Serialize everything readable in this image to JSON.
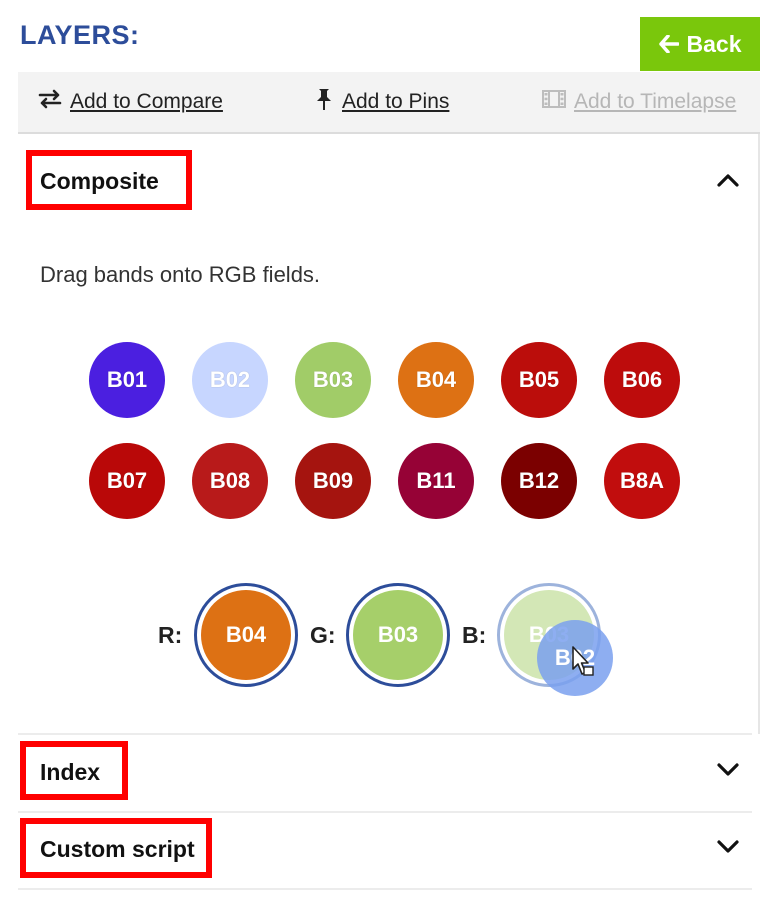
{
  "header": {
    "title": "LAYERS:",
    "back_label": "Back"
  },
  "toolbar": {
    "compare_label": "Add to Compare",
    "pins_label": "Add to Pins",
    "timelapse_label": "Add to Timelapse"
  },
  "composite": {
    "title": "Composite",
    "instruction": "Drag bands onto RGB fields.",
    "bands": [
      {
        "label": "B01",
        "color": "#4b1fe0"
      },
      {
        "label": "B02",
        "color": "#c7d6ff"
      },
      {
        "label": "B03",
        "color": "#a1cc68"
      },
      {
        "label": "B04",
        "color": "#dd7114"
      },
      {
        "label": "B05",
        "color": "#bb0d0b"
      },
      {
        "label": "B06",
        "color": "#bd0c0c"
      },
      {
        "label": "B07",
        "color": "#b90808"
      },
      {
        "label": "B08",
        "color": "#b81a1a"
      },
      {
        "label": "B09",
        "color": "#a5140f"
      },
      {
        "label": "B11",
        "color": "#960236"
      },
      {
        "label": "B12",
        "color": "#7b0000"
      },
      {
        "label": "B8A",
        "color": "#c10d0d"
      }
    ],
    "rgb": {
      "r_label": "R:",
      "g_label": "G:",
      "b_label": "B:",
      "r_value": "B04",
      "r_color": "#dd7114",
      "g_value": "B03",
      "g_color": "#a6cf6a",
      "b_value": "B03",
      "b_color": "#d3e7b6",
      "dragging": "B02"
    }
  },
  "index": {
    "title": "Index"
  },
  "custom_script": {
    "title": "Custom script"
  }
}
